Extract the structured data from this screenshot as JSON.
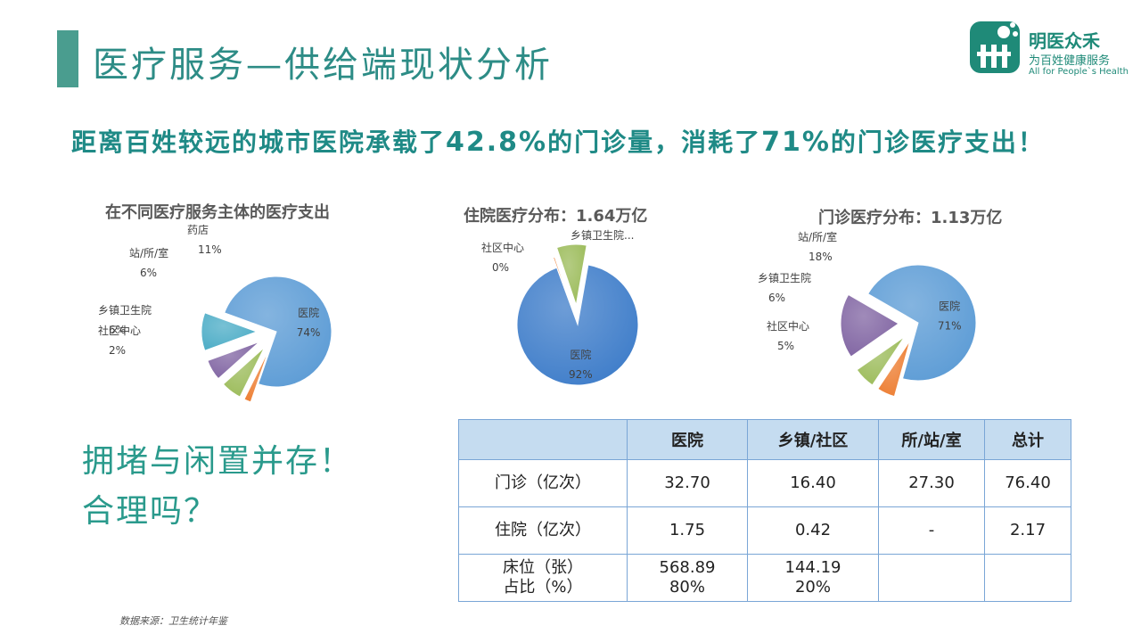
{
  "page": {
    "title": "医疗服务—供给端现状分析",
    "headline_parts": [
      "距离百姓较远的城市医院承载了",
      "42.8%",
      "的门诊量，消耗了",
      "71%",
      "的门诊医疗支出！"
    ],
    "slogan_line1": "拥堵与闲置并存！",
    "slogan_line2": "合理吗？",
    "source": "数据来源：卫生统计年鉴"
  },
  "logo": {
    "name": "明医众禾",
    "subtitle": "为百姓健康服务",
    "english": "All for People`s Health",
    "color": "#1f8a78"
  },
  "chart_data": [
    {
      "type": "pie",
      "title": "在不同医疗服务主体的医疗支出",
      "slices": [
        {
          "label": "医院",
          "value": 74,
          "display": "74%",
          "color": "#5b9bd5"
        },
        {
          "label": "社区中心",
          "value": 2,
          "display": "2%",
          "color": "#ed7d31"
        },
        {
          "label": "乡镇卫生院",
          "value": 6,
          "display": "6%",
          "color": "#9bbb59"
        },
        {
          "label": "站/所/室",
          "value": 6,
          "display": "6%",
          "color": "#8064a2"
        },
        {
          "label": "药店",
          "value": 11,
          "display": "11%",
          "color": "#4bacc6"
        }
      ]
    },
    {
      "type": "pie",
      "title": "住院医疗分布：1.64万亿",
      "slices": [
        {
          "label": "医院",
          "value": 92,
          "display": "92%",
          "color": "#3d7cc9"
        },
        {
          "label": "社区中心",
          "value": 0.4,
          "display": "0%",
          "color": "#ed7d31"
        },
        {
          "label": "乡镇卫生院...",
          "value": 8,
          "display": "",
          "color": "#9bbb59"
        }
      ]
    },
    {
      "type": "pie",
      "title": "门诊医疗分布：1.13万亿",
      "slices": [
        {
          "label": "医院",
          "value": 71,
          "display": "71%",
          "color": "#5b9bd5"
        },
        {
          "label": "社区中心",
          "value": 5,
          "display": "5%",
          "color": "#ed7d31"
        },
        {
          "label": "乡镇卫生院",
          "value": 6,
          "display": "6%",
          "color": "#9bbb59"
        },
        {
          "label": "站/所/室",
          "value": 18,
          "display": "18%",
          "color": "#8064a2"
        }
      ]
    }
  ],
  "table": {
    "headers": [
      "",
      "医院",
      "乡镇/社区",
      "所/站/室",
      "总计"
    ],
    "rows": [
      [
        "门诊（亿次）",
        "32.70",
        "16.40",
        "27.30",
        "76.40"
      ],
      [
        "住院（亿次）",
        "1.75",
        "0.42",
        "-",
        "2.17"
      ],
      [
        "床位（张）\n占比（%）",
        "568.89\n80%",
        "144.19\n20%",
        "",
        ""
      ]
    ]
  }
}
